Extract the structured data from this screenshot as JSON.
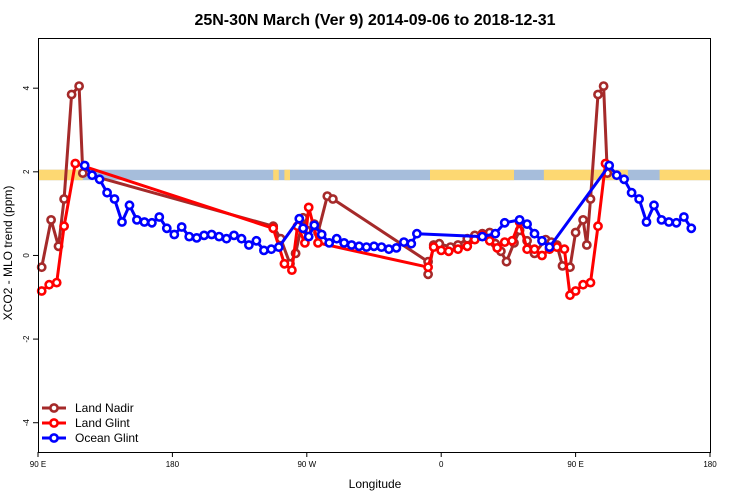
{
  "chart_data": {
    "type": "line",
    "title": "25N-30N March (Ver 9)   2014-09-06 to 2018-12-31",
    "xlabel": "Longitude",
    "ylabel": "XCO2 - MLO trend (ppm)",
    "xlim": [
      90,
      450
    ],
    "ylim": [
      -4.7,
      5.2
    ],
    "x_ticks": [
      {
        "value": 90,
        "label": "90 E"
      },
      {
        "value": 162,
        "label": "180"
      },
      {
        "value": 234,
        "label": "90 W"
      },
      {
        "value": 306,
        "label": "0"
      },
      {
        "value": 378,
        "label": "90 E"
      },
      {
        "value": 450,
        "label": "180"
      }
    ],
    "y_ticks": [
      {
        "value": -4,
        "label": "-4"
      },
      {
        "value": -2,
        "label": "-2"
      },
      {
        "value": 0,
        "label": "0"
      },
      {
        "value": 2,
        "label": "2"
      },
      {
        "value": 4,
        "label": "4"
      }
    ],
    "grid": false,
    "legend_position": "bottom-left",
    "land_mask_band": {
      "y_range": [
        1.8,
        2.05
      ],
      "ocean_color": "#a6bddb",
      "land_color": "#fdd872",
      "land_segments": [
        [
          90,
          114
        ],
        [
          216,
          219
        ],
        [
          222,
          225
        ],
        [
          300,
          345
        ],
        [
          361,
          406
        ],
        [
          423,
          450
        ]
      ]
    },
    "series": [
      {
        "name": "Land Nadir",
        "color": "#a52a2a",
        "points": [
          [
            92,
            -0.28
          ],
          [
            97,
            0.85
          ],
          [
            101,
            0.22
          ],
          [
            104,
            1.35
          ],
          [
            108,
            3.85
          ],
          [
            112,
            4.05
          ],
          [
            114,
            1.97
          ],
          [
            216,
            0.7
          ],
          [
            220,
            0.4
          ],
          [
            225,
            -0.2
          ],
          [
            228,
            0.05
          ],
          [
            232,
            0.9
          ],
          [
            234,
            0.6
          ],
          [
            238,
            0.75
          ],
          [
            240,
            0.55
          ],
          [
            245,
            1.42
          ],
          [
            248,
            1.35
          ],
          [
            299,
            -0.15
          ],
          [
            299,
            -0.45
          ],
          [
            302,
            0.25
          ],
          [
            305,
            0.28
          ],
          [
            311,
            0.2
          ],
          [
            315,
            0.25
          ],
          [
            320,
            0.4
          ],
          [
            324,
            0.48
          ],
          [
            328,
            0.52
          ],
          [
            332,
            0.55
          ],
          [
            335,
            0.28
          ],
          [
            338,
            0.1
          ],
          [
            341,
            -0.15
          ],
          [
            345,
            0.3
          ],
          [
            348,
            0.6
          ],
          [
            352,
            0.35
          ],
          [
            356,
            0.05
          ],
          [
            362,
            0.38
          ],
          [
            365,
            0.32
          ],
          [
            368,
            0.25
          ],
          [
            371,
            -0.25
          ],
          [
            375,
            -0.28
          ],
          [
            378,
            0.55
          ],
          [
            382,
            0.85
          ],
          [
            384,
            0.25
          ],
          [
            386,
            1.35
          ],
          [
            390,
            3.85
          ],
          [
            393,
            4.05
          ],
          [
            395,
            1.97
          ]
        ]
      },
      {
        "name": "Land Glint",
        "color": "#ff0000",
        "points": [
          [
            92,
            -0.85
          ],
          [
            96,
            -0.7
          ],
          [
            100,
            -0.65
          ],
          [
            104,
            0.7
          ],
          [
            110,
            2.2
          ],
          [
            216,
            0.65
          ],
          [
            222,
            -0.2
          ],
          [
            226,
            -0.35
          ],
          [
            229,
            0.7
          ],
          [
            233,
            0.3
          ],
          [
            235,
            1.15
          ],
          [
            240,
            0.3
          ],
          [
            299,
            -0.28
          ],
          [
            302,
            0.2
          ],
          [
            306,
            0.12
          ],
          [
            310,
            0.1
          ],
          [
            315,
            0.15
          ],
          [
            320,
            0.22
          ],
          [
            324,
            0.38
          ],
          [
            328,
            0.48
          ],
          [
            332,
            0.35
          ],
          [
            336,
            0.18
          ],
          [
            340,
            0.32
          ],
          [
            344,
            0.35
          ],
          [
            348,
            0.8
          ],
          [
            352,
            0.15
          ],
          [
            356,
            0.15
          ],
          [
            360,
            0.0
          ],
          [
            364,
            0.15
          ],
          [
            368,
            0.2
          ],
          [
            372,
            0.15
          ],
          [
            375,
            -0.95
          ],
          [
            378,
            -0.85
          ],
          [
            382,
            -0.7
          ],
          [
            386,
            -0.65
          ],
          [
            390,
            0.7
          ],
          [
            394,
            2.2
          ]
        ]
      },
      {
        "name": "Ocean Glint",
        "color": "#0000ff",
        "points": [
          [
            115,
            2.15
          ],
          [
            119,
            1.92
          ],
          [
            123,
            1.82
          ],
          [
            127,
            1.5
          ],
          [
            131,
            1.35
          ],
          [
            135,
            0.8
          ],
          [
            139,
            1.2
          ],
          [
            143,
            0.85
          ],
          [
            147,
            0.8
          ],
          [
            151,
            0.78
          ],
          [
            155,
            0.92
          ],
          [
            159,
            0.65
          ],
          [
            163,
            0.5
          ],
          [
            167,
            0.68
          ],
          [
            171,
            0.45
          ],
          [
            175,
            0.42
          ],
          [
            179,
            0.48
          ],
          [
            183,
            0.5
          ],
          [
            187,
            0.45
          ],
          [
            191,
            0.4
          ],
          [
            195,
            0.48
          ],
          [
            199,
            0.4
          ],
          [
            203,
            0.25
          ],
          [
            207,
            0.35
          ],
          [
            211,
            0.12
          ],
          [
            215,
            0.15
          ],
          [
            219,
            0.2
          ],
          [
            230,
            0.88
          ],
          [
            232,
            0.65
          ],
          [
            235,
            0.45
          ],
          [
            238,
            0.72
          ],
          [
            242,
            0.5
          ],
          [
            246,
            0.3
          ],
          [
            250,
            0.4
          ],
          [
            254,
            0.3
          ],
          [
            258,
            0.25
          ],
          [
            262,
            0.22
          ],
          [
            266,
            0.2
          ],
          [
            270,
            0.22
          ],
          [
            274,
            0.2
          ],
          [
            278,
            0.15
          ],
          [
            282,
            0.18
          ],
          [
            286,
            0.32
          ],
          [
            290,
            0.28
          ],
          [
            293,
            0.52
          ],
          [
            328,
            0.45
          ],
          [
            335,
            0.52
          ],
          [
            340,
            0.78
          ],
          [
            348,
            0.85
          ],
          [
            352,
            0.75
          ],
          [
            356,
            0.52
          ],
          [
            360,
            0.35
          ],
          [
            364,
            0.2
          ],
          [
            396,
            2.15
          ],
          [
            400,
            1.92
          ],
          [
            404,
            1.82
          ],
          [
            408,
            1.5
          ],
          [
            412,
            1.35
          ],
          [
            416,
            0.8
          ],
          [
            420,
            1.2
          ],
          [
            424,
            0.85
          ],
          [
            428,
            0.8
          ],
          [
            432,
            0.78
          ],
          [
            436,
            0.92
          ],
          [
            440,
            0.65
          ]
        ]
      }
    ]
  }
}
